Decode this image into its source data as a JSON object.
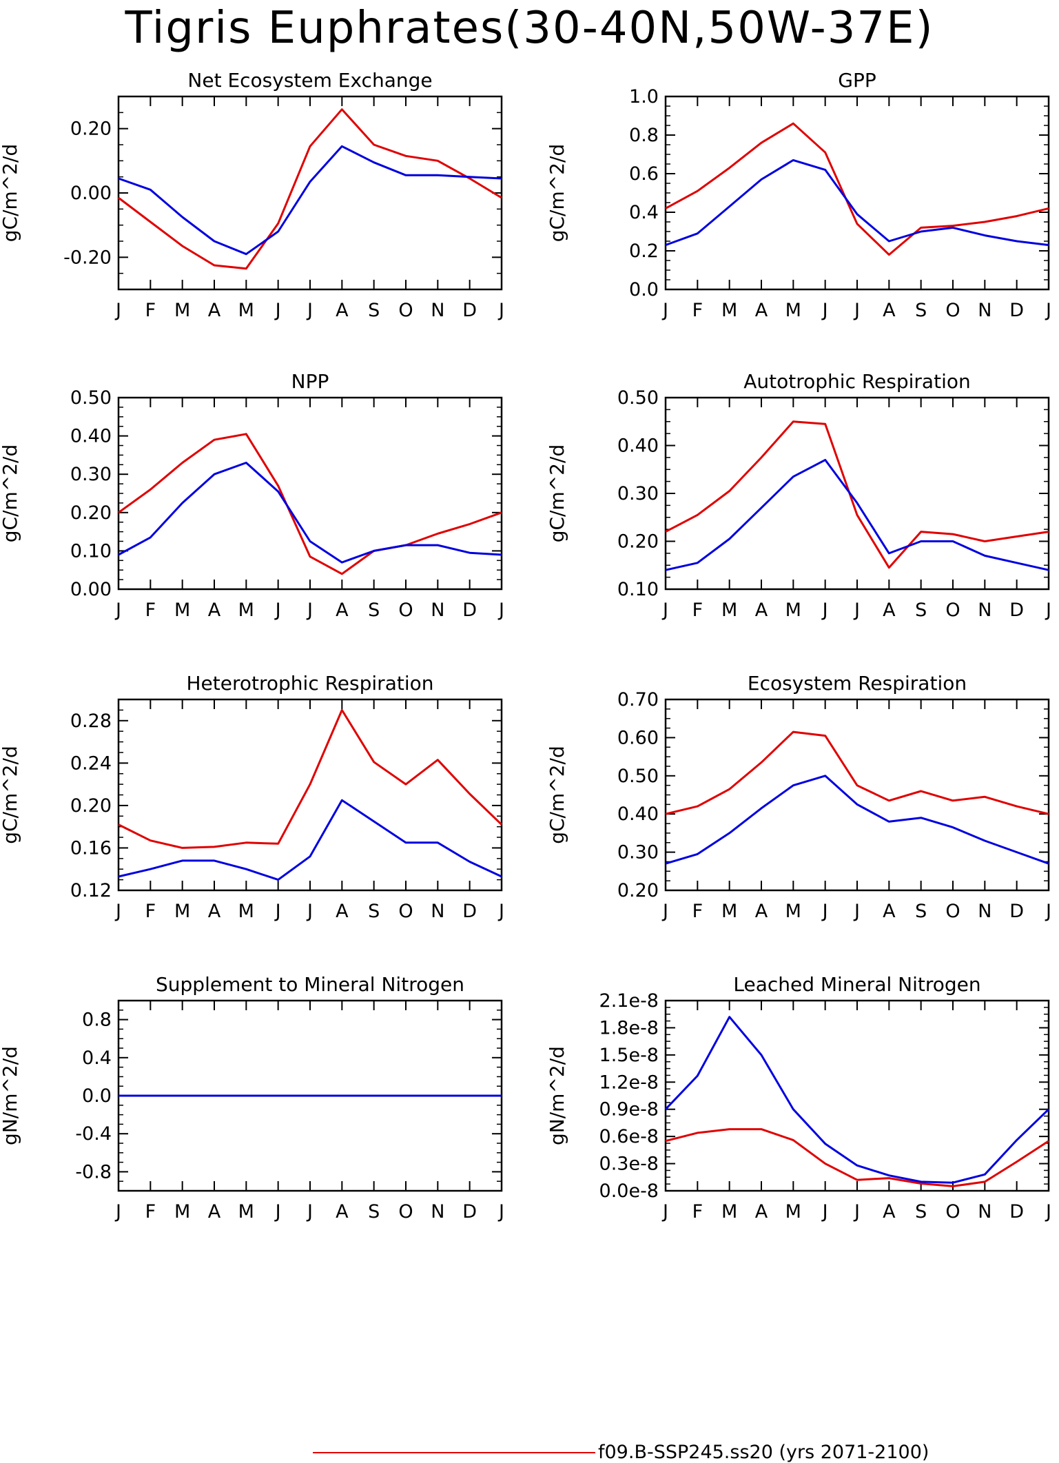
{
  "title": "Tigris Euphrates(30-40N,50W-37E)",
  "legend": {
    "label": "f09.B-SSP245.ss20 (yrs 2071-2100)",
    "color": "#e00000"
  },
  "month_labels": [
    "J",
    "F",
    "M",
    "A",
    "M",
    "J",
    "J",
    "A",
    "S",
    "O",
    "N",
    "D",
    "J"
  ],
  "chart_data": [
    {
      "type": "line",
      "title": "Net Ecosystem Exchange",
      "ylabel": "gC/m^2/d",
      "ylim": [
        -0.3,
        0.3
      ],
      "yticks": [
        -0.2,
        0.0,
        0.2
      ],
      "yticklabels": [
        "-0.20",
        "0.00",
        "0.20"
      ],
      "series": [
        {
          "name": "f09.B-SSP245.ss20 (yrs 2071-2100)",
          "color": "#e00000",
          "values": [
            -0.015,
            -0.09,
            -0.165,
            -0.225,
            -0.235,
            -0.095,
            0.145,
            0.26,
            0.15,
            0.115,
            0.1,
            0.045,
            -0.015
          ]
        },
        {
          "color": "#0000e0",
          "values": [
            0.045,
            0.01,
            -0.075,
            -0.15,
            -0.19,
            -0.12,
            0.035,
            0.145,
            0.095,
            0.055,
            0.055,
            0.05,
            0.045
          ]
        }
      ]
    },
    {
      "type": "line",
      "title": "GPP",
      "ylabel": "gC/m^2/d",
      "ylim": [
        0.0,
        1.0
      ],
      "yticks": [
        0.0,
        0.2,
        0.4,
        0.6,
        0.8,
        1.0
      ],
      "yticklabels": [
        "0.0",
        "0.2",
        "0.4",
        "0.6",
        "0.8",
        "1.0"
      ],
      "series": [
        {
          "name": "f09.B-SSP245.ss20 (yrs 2071-2100)",
          "color": "#e00000",
          "values": [
            0.42,
            0.51,
            0.63,
            0.76,
            0.86,
            0.71,
            0.34,
            0.18,
            0.32,
            0.33,
            0.35,
            0.38,
            0.42
          ]
        },
        {
          "color": "#0000e0",
          "values": [
            0.23,
            0.29,
            0.43,
            0.57,
            0.67,
            0.62,
            0.39,
            0.25,
            0.3,
            0.32,
            0.28,
            0.25,
            0.23
          ]
        }
      ]
    },
    {
      "type": "line",
      "title": "NPP",
      "ylabel": "gC/m^2/d",
      "ylim": [
        0.0,
        0.5
      ],
      "yticks": [
        0.0,
        0.1,
        0.2,
        0.3,
        0.4,
        0.5
      ],
      "yticklabels": [
        "0.00",
        "0.10",
        "0.20",
        "0.30",
        "0.40",
        "0.50"
      ],
      "series": [
        {
          "name": "f09.B-SSP245.ss20 (yrs 2071-2100)",
          "color": "#e00000",
          "values": [
            0.2,
            0.26,
            0.33,
            0.39,
            0.405,
            0.27,
            0.085,
            0.04,
            0.1,
            0.115,
            0.145,
            0.17,
            0.2
          ]
        },
        {
          "color": "#0000e0",
          "values": [
            0.09,
            0.135,
            0.225,
            0.3,
            0.33,
            0.255,
            0.125,
            0.07,
            0.1,
            0.115,
            0.115,
            0.095,
            0.09
          ]
        }
      ]
    },
    {
      "type": "line",
      "title": "Autotrophic Respiration",
      "ylabel": "gC/m^2/d",
      "ylim": [
        0.1,
        0.5
      ],
      "yticks": [
        0.1,
        0.2,
        0.3,
        0.4,
        0.5
      ],
      "yticklabels": [
        "0.10",
        "0.20",
        "0.30",
        "0.40",
        "0.50"
      ],
      "series": [
        {
          "name": "f09.B-SSP245.ss20 (yrs 2071-2100)",
          "color": "#e00000",
          "values": [
            0.22,
            0.255,
            0.305,
            0.375,
            0.45,
            0.445,
            0.255,
            0.145,
            0.22,
            0.215,
            0.2,
            0.21,
            0.22
          ]
        },
        {
          "color": "#0000e0",
          "values": [
            0.14,
            0.155,
            0.205,
            0.27,
            0.335,
            0.37,
            0.28,
            0.175,
            0.2,
            0.2,
            0.17,
            0.155,
            0.14
          ]
        }
      ]
    },
    {
      "type": "line",
      "title": "Heterotrophic Respiration",
      "ylabel": "gC/m^2/d",
      "ylim": [
        0.12,
        0.3
      ],
      "yticks": [
        0.12,
        0.16,
        0.2,
        0.24,
        0.28
      ],
      "yticklabels": [
        "0.12",
        "0.16",
        "0.20",
        "0.24",
        "0.28"
      ],
      "series": [
        {
          "name": "f09.B-SSP245.ss20 (yrs 2071-2100)",
          "color": "#e00000",
          "values": [
            0.182,
            0.167,
            0.16,
            0.161,
            0.165,
            0.164,
            0.22,
            0.29,
            0.241,
            0.22,
            0.243,
            0.211,
            0.182
          ]
        },
        {
          "color": "#0000e0",
          "values": [
            0.133,
            0.14,
            0.148,
            0.148,
            0.14,
            0.13,
            0.152,
            0.205,
            0.185,
            0.165,
            0.165,
            0.147,
            0.133
          ]
        }
      ]
    },
    {
      "type": "line",
      "title": "Ecosystem Respiration",
      "ylabel": "gC/m^2/d",
      "ylim": [
        0.2,
        0.7
      ],
      "yticks": [
        0.2,
        0.3,
        0.4,
        0.5,
        0.6,
        0.7
      ],
      "yticklabels": [
        "0.20",
        "0.30",
        "0.40",
        "0.50",
        "0.60",
        "0.70"
      ],
      "series": [
        {
          "name": "f09.B-SSP245.ss20 (yrs 2071-2100)",
          "color": "#e00000",
          "values": [
            0.4,
            0.42,
            0.465,
            0.535,
            0.615,
            0.605,
            0.475,
            0.435,
            0.46,
            0.435,
            0.445,
            0.42,
            0.4
          ]
        },
        {
          "color": "#0000e0",
          "values": [
            0.27,
            0.295,
            0.35,
            0.415,
            0.475,
            0.5,
            0.425,
            0.38,
            0.39,
            0.365,
            0.33,
            0.3,
            0.27
          ]
        }
      ]
    },
    {
      "type": "line",
      "title": "Supplement to Mineral Nitrogen",
      "ylabel": "gN/m^2/d",
      "ylim": [
        -1.0,
        1.0
      ],
      "yticks": [
        -0.8,
        -0.4,
        0.0,
        0.4,
        0.8
      ],
      "yticklabels": [
        "-0.8",
        "-0.4",
        "0.0",
        "0.4",
        "0.8"
      ],
      "series": [
        {
          "name": "f09.B-SSP245.ss20 (yrs 2071-2100)",
          "color": "#e00000",
          "values": [
            0,
            0,
            0,
            0,
            0,
            0,
            0,
            0,
            0,
            0,
            0,
            0,
            0
          ]
        },
        {
          "color": "#0000e0",
          "values": [
            0,
            0,
            0,
            0,
            0,
            0,
            0,
            0,
            0,
            0,
            0,
            0,
            0
          ]
        }
      ]
    },
    {
      "type": "line",
      "title": "Leached Mineral Nitrogen",
      "ylabel": "gN/m^2/d",
      "ylim": [
        0.0,
        2.1e-08
      ],
      "yticks": [
        0.0,
        3e-09,
        6e-09,
        9e-09,
        1.2e-08,
        1.5e-08,
        1.8e-08,
        2.1e-08
      ],
      "yticklabels": [
        "0.0e-8",
        "0.3e-8",
        "0.6e-8",
        "0.9e-8",
        "1.2e-8",
        "1.5e-8",
        "1.8e-8",
        "2.1e-8"
      ],
      "series": [
        {
          "name": "f09.B-SSP245.ss20 (yrs 2071-2100)",
          "color": "#e00000",
          "values": [
            5.5e-09,
            6.4e-09,
            6.8e-09,
            6.8e-09,
            5.6e-09,
            3e-09,
            1.2e-09,
            1.4e-09,
            8e-10,
            5e-10,
            1e-09,
            3.2e-09,
            5.5e-09
          ]
        },
        {
          "color": "#0000e0",
          "values": [
            9e-09,
            1.27e-08,
            1.92e-08,
            1.5e-08,
            9e-09,
            5.2e-09,
            2.8e-09,
            1.7e-09,
            1e-09,
            9e-10,
            1.8e-09,
            5.6e-09,
            9e-09
          ]
        }
      ]
    }
  ]
}
